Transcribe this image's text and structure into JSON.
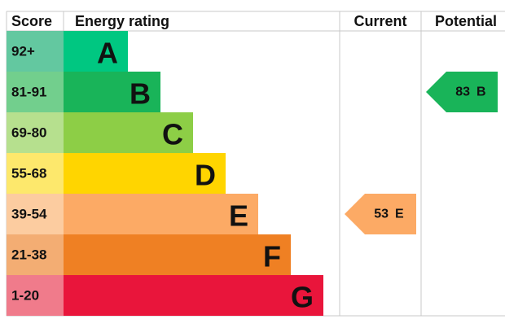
{
  "header": {
    "score": "Score",
    "rating": "Energy rating",
    "current": "Current",
    "potential": "Potential"
  },
  "rows": [
    {
      "score": "92+",
      "rating": "A",
      "color": "#00c781",
      "score_color": "#63c8a0"
    },
    {
      "score": "81-91",
      "rating": "B",
      "color": "#19b459",
      "score_color": "#72cf8d"
    },
    {
      "score": "69-80",
      "rating": "C",
      "color": "#8dce46",
      "score_color": "#b6e08e"
    },
    {
      "score": "55-68",
      "rating": "D",
      "color": "#ffd500",
      "score_color": "#fde86c"
    },
    {
      "score": "39-54",
      "rating": "E",
      "color": "#fcaa65",
      "score_color": "#fccca0"
    },
    {
      "score": "21-38",
      "rating": "F",
      "color": "#ef8023",
      "score_color": "#f3ad73"
    },
    {
      "score": "1-20",
      "rating": "G",
      "color": "#e9153b",
      "score_color": "#f07b8b"
    }
  ],
  "current": {
    "value": 53,
    "rating": "E"
  },
  "potential": {
    "value": 83,
    "rating": "B"
  }
}
